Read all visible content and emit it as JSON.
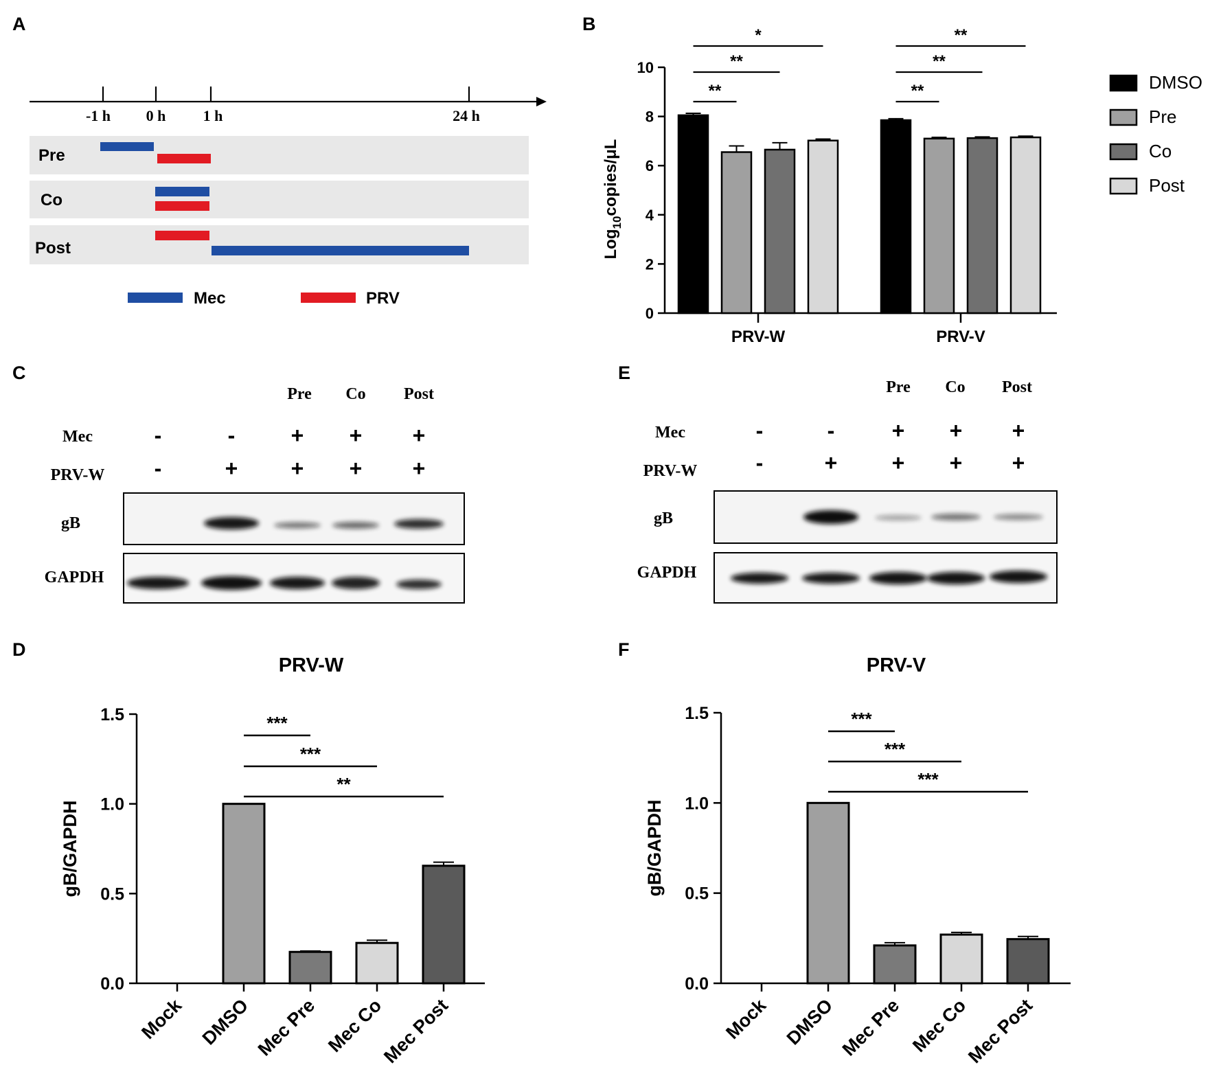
{
  "panels": {
    "A": {
      "label": "A",
      "ticks": [
        "-1 h",
        "0 h",
        "1 h",
        "24 h"
      ],
      "rows": [
        {
          "name": "Pre",
          "mec": [
            -1,
            0
          ],
          "prv": [
            0,
            1
          ]
        },
        {
          "name": "Co",
          "mec": [
            0,
            1
          ],
          "prv": [
            0,
            1
          ]
        },
        {
          "name": "Post",
          "mec": [
            1,
            24
          ],
          "prv": [
            0,
            1
          ]
        }
      ],
      "legend": [
        {
          "label": "Mec",
          "color": "#1f4ea3"
        },
        {
          "label": "PRV",
          "color": "#e21b23"
        }
      ]
    },
    "B": {
      "label": "B"
    },
    "C": {
      "label": "C",
      "conditions": [
        "Pre",
        "Co",
        "Post"
      ],
      "rows": [
        {
          "label": "Mec",
          "values": [
            "-",
            "-",
            "+",
            "+",
            "+"
          ]
        },
        {
          "label": "PRV-W",
          "values": [
            "-",
            "+",
            "+",
            "+",
            "+"
          ]
        }
      ],
      "blots": [
        "gB",
        "GAPDH"
      ]
    },
    "D": {
      "label": "D"
    },
    "E": {
      "label": "E",
      "conditions": [
        "Pre",
        "Co",
        "Post"
      ],
      "rows": [
        {
          "label": "Mec",
          "values": [
            "-",
            "-",
            "+",
            "+",
            "+"
          ]
        },
        {
          "label": "PRV-W",
          "values": [
            "-",
            "+",
            "+",
            "+",
            "+"
          ]
        }
      ],
      "blots": [
        "gB",
        "GAPDH"
      ]
    },
    "F": {
      "label": "F"
    }
  },
  "chart_data": [
    {
      "panel": "B",
      "type": "bar",
      "categories": [
        "PRV-W",
        "PRV-V"
      ],
      "ylabel": "Log10copies/μL",
      "ylim": [
        0,
        10
      ],
      "yticks": [
        0,
        2,
        4,
        6,
        8,
        10
      ],
      "series": [
        {
          "name": "DMSO",
          "values": [
            8.05,
            7.85
          ],
          "errors": [
            0.08,
            0.06
          ],
          "color": "#000000"
        },
        {
          "name": "Pre",
          "values": [
            6.55,
            7.1
          ],
          "errors": [
            0.25,
            0.05
          ],
          "color": "#a0a0a0"
        },
        {
          "name": "Co",
          "values": [
            6.65,
            7.12
          ],
          "errors": [
            0.28,
            0.05
          ],
          "color": "#707070"
        },
        {
          "name": "Post",
          "values": [
            7.02,
            7.15
          ],
          "errors": [
            0.06,
            0.05
          ],
          "color": "#d8d8d8"
        }
      ],
      "significance": [
        {
          "group": 0,
          "from": 0,
          "to": 1,
          "label": "**"
        },
        {
          "group": 0,
          "from": 0,
          "to": 2,
          "label": "**"
        },
        {
          "group": 0,
          "from": 0,
          "to": 3,
          "label": "*"
        },
        {
          "group": 1,
          "from": 0,
          "to": 1,
          "label": "**"
        },
        {
          "group": 1,
          "from": 0,
          "to": 2,
          "label": "**"
        },
        {
          "group": 1,
          "from": 0,
          "to": 3,
          "label": "**"
        }
      ],
      "legend": "right"
    },
    {
      "panel": "D",
      "type": "bar",
      "title": "PRV-W",
      "categories": [
        "Mock",
        "DMSO",
        "Mec Pre",
        "Mec Co",
        "Mec Post"
      ],
      "values": [
        0,
        1.0,
        0.175,
        0.225,
        0.655
      ],
      "errors": [
        0,
        0,
        0.005,
        0.015,
        0.02
      ],
      "colors": [
        "#ffffff",
        "#a0a0a0",
        "#7a7a7a",
        "#d8d8d8",
        "#5a5a5a"
      ],
      "ylabel": "gB/GAPDH",
      "ylim": [
        0,
        1.5
      ],
      "yticks": [
        "0.0",
        "0.5",
        "1.0",
        "1.5"
      ],
      "significance": [
        {
          "from": 1,
          "to": 2,
          "label": "***"
        },
        {
          "from": 1,
          "to": 3,
          "label": "***"
        },
        {
          "from": 1,
          "to": 4,
          "label": "**"
        }
      ]
    },
    {
      "panel": "F",
      "type": "bar",
      "title": "PRV-V",
      "categories": [
        "Mock",
        "DMSO",
        "Mec Pre",
        "Mec Co",
        "Mec Post"
      ],
      "values": [
        0,
        1.0,
        0.21,
        0.27,
        0.245
      ],
      "errors": [
        0,
        0,
        0.015,
        0.012,
        0.015
      ],
      "colors": [
        "#ffffff",
        "#a0a0a0",
        "#7a7a7a",
        "#d8d8d8",
        "#5a5a5a"
      ],
      "ylabel": "gB/GAPDH",
      "ylim": [
        0,
        1.5
      ],
      "yticks": [
        "0.0",
        "0.5",
        "1.0",
        "1.5"
      ],
      "significance": [
        {
          "from": 1,
          "to": 2,
          "label": "***"
        },
        {
          "from": 1,
          "to": 3,
          "label": "***"
        },
        {
          "from": 1,
          "to": 4,
          "label": "***"
        }
      ]
    }
  ]
}
